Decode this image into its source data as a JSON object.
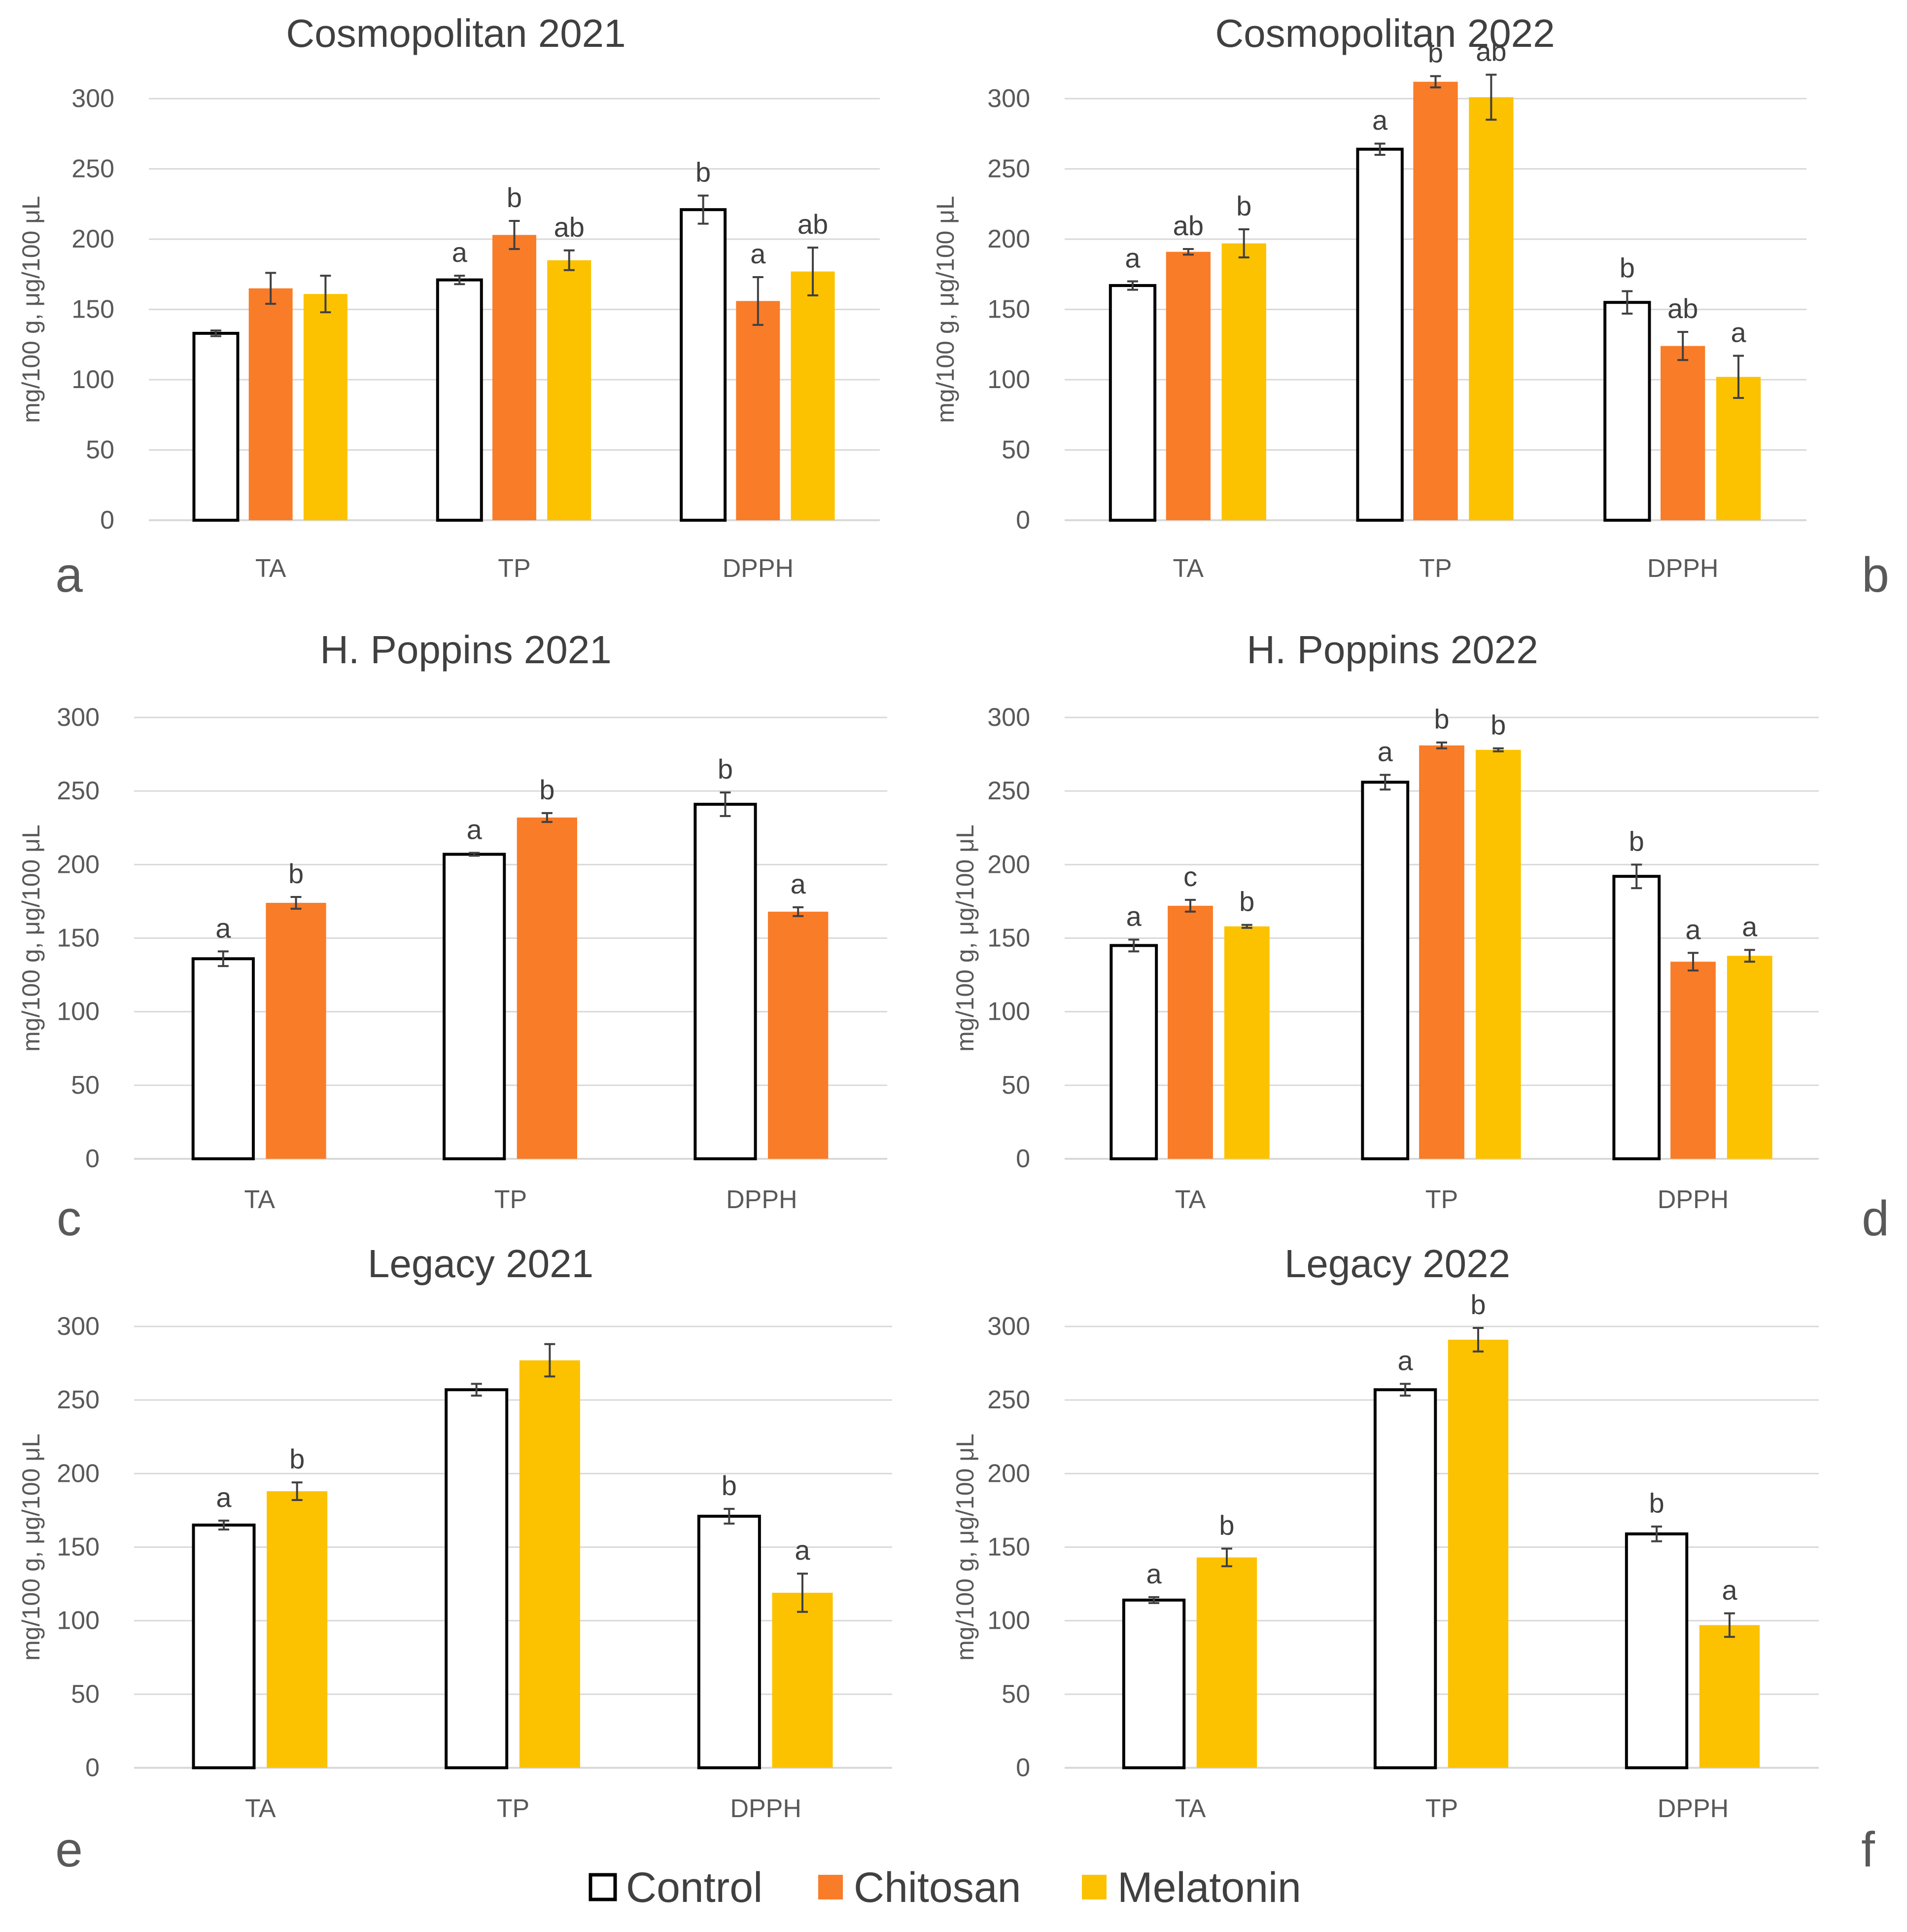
{
  "colors": {
    "control_fill": "#ffffff",
    "control_edge": "#000000",
    "chitosan": "#f97c28",
    "melatonin": "#fcc200",
    "grid": "#d9d9d9",
    "text": "#595959",
    "error_bar": "#404040"
  },
  "legend": [
    {
      "key": "control",
      "label": "Control"
    },
    {
      "key": "chitosan",
      "label": "Chitosan"
    },
    {
      "key": "melatonin",
      "label": "Melatonin"
    }
  ],
  "chart_data": [
    {
      "type": "bar",
      "panel": "a",
      "title": "Cosmopolitan 2021",
      "ylabel": "mg/100 g, μg/100 μL",
      "ylim": [
        0,
        300
      ],
      "yticks": [
        "0",
        "50",
        "100",
        "150",
        "200",
        "250",
        "300"
      ],
      "categories": [
        "TA",
        "TP",
        "DPPH"
      ],
      "series": [
        {
          "key": "control",
          "name": "Control",
          "values": [
            133,
            171,
            221
          ],
          "errors": [
            2,
            3,
            10
          ],
          "letters": [
            "",
            "a",
            "b"
          ]
        },
        {
          "key": "chitosan",
          "name": "Chitosan",
          "values": [
            165,
            203,
            156
          ],
          "errors": [
            11,
            10,
            17
          ],
          "letters": [
            "",
            "b",
            "a"
          ]
        },
        {
          "key": "melatonin",
          "name": "Melatonin",
          "values": [
            161,
            185,
            177
          ],
          "errors": [
            13,
            7,
            17
          ],
          "letters": [
            "",
            "ab",
            "ab"
          ]
        }
      ]
    },
    {
      "type": "bar",
      "panel": "b",
      "title": "Cosmopolitan 2022",
      "ylabel": "mg/100 g, μg/100 μL",
      "ylim": [
        0,
        300
      ],
      "yticks": [
        "0",
        "50",
        "100",
        "150",
        "200",
        "250",
        "300"
      ],
      "categories": [
        "TA",
        "TP",
        "DPPH"
      ],
      "series": [
        {
          "key": "control",
          "name": "Control",
          "values": [
            167,
            264,
            155
          ],
          "errors": [
            3,
            4,
            8
          ],
          "letters": [
            "a",
            "a",
            "b"
          ]
        },
        {
          "key": "chitosan",
          "name": "Chitosan",
          "values": [
            191,
            312,
            124
          ],
          "errors": [
            2,
            4,
            10
          ],
          "letters": [
            "ab",
            "b",
            "ab"
          ]
        },
        {
          "key": "melatonin",
          "name": "Melatonin",
          "values": [
            197,
            301,
            102
          ],
          "errors": [
            10,
            16,
            15
          ],
          "letters": [
            "b",
            "ab",
            "a"
          ]
        }
      ]
    },
    {
      "type": "bar",
      "panel": "c",
      "title": "H. Poppins 2021",
      "ylabel": "mg/100 g, μg/100 μL",
      "ylim": [
        0,
        300
      ],
      "yticks": [
        "0",
        "50",
        "100",
        "150",
        "200",
        "250",
        "300"
      ],
      "categories": [
        "TA",
        "TP",
        "DPPH"
      ],
      "series": [
        {
          "key": "control",
          "name": "Control",
          "values": [
            136,
            207,
            241
          ],
          "errors": [
            5,
            1,
            8
          ],
          "letters": [
            "a",
            "a",
            "b"
          ]
        },
        {
          "key": "chitosan",
          "name": "Chitosan",
          "values": [
            174,
            232,
            168
          ],
          "errors": [
            4,
            3,
            3
          ],
          "letters": [
            "b",
            "b",
            "a"
          ]
        }
      ]
    },
    {
      "type": "bar",
      "panel": "d",
      "title": "H. Poppins 2022",
      "ylabel": "mg/100 g, μg/100 μL",
      "ylim": [
        0,
        300
      ],
      "yticks": [
        "0",
        "50",
        "100",
        "150",
        "200",
        "250",
        "300"
      ],
      "categories": [
        "TA",
        "TP",
        "DPPH"
      ],
      "series": [
        {
          "key": "control",
          "name": "Control",
          "values": [
            145,
            256,
            192
          ],
          "errors": [
            4,
            5,
            8
          ],
          "letters": [
            "a",
            "a",
            "b"
          ]
        },
        {
          "key": "chitosan",
          "name": "Chitosan",
          "values": [
            172,
            281,
            134
          ],
          "errors": [
            4,
            2,
            6
          ],
          "letters": [
            "c",
            "b",
            "a"
          ]
        },
        {
          "key": "melatonin",
          "name": "Melatonin",
          "values": [
            158,
            278,
            138
          ],
          "errors": [
            1,
            1,
            4
          ],
          "letters": [
            "b",
            "b",
            "a"
          ]
        }
      ]
    },
    {
      "type": "bar",
      "panel": "e",
      "title": "Legacy 2021",
      "ylabel": "mg/100 g, μg/100 μL",
      "ylim": [
        0,
        300
      ],
      "yticks": [
        "0",
        "50",
        "100",
        "150",
        "200",
        "250",
        "300"
      ],
      "categories": [
        "TA",
        "TP",
        "DPPH"
      ],
      "series": [
        {
          "key": "control",
          "name": "Control",
          "values": [
            165,
            257,
            171
          ],
          "errors": [
            3,
            4,
            5
          ],
          "letters": [
            "a",
            "",
            "b"
          ]
        },
        {
          "key": "melatonin",
          "name": "Melatonin",
          "values": [
            188,
            277,
            119
          ],
          "errors": [
            6,
            11,
            13
          ],
          "letters": [
            "b",
            "",
            "a"
          ]
        }
      ]
    },
    {
      "type": "bar",
      "panel": "f",
      "title": "Legacy 2022",
      "ylabel": "mg/100 g, μg/100 μL",
      "ylim": [
        0,
        300
      ],
      "yticks": [
        "0",
        "50",
        "100",
        "150",
        "200",
        "250",
        "300"
      ],
      "categories": [
        "TA",
        "TP",
        "DPPH"
      ],
      "series": [
        {
          "key": "control",
          "name": "Control",
          "values": [
            114,
            257,
            159
          ],
          "errors": [
            2,
            4,
            5
          ],
          "letters": [
            "a",
            "a",
            "b"
          ]
        },
        {
          "key": "melatonin",
          "name": "Melatonin",
          "values": [
            143,
            291,
            97
          ],
          "errors": [
            6,
            8,
            8
          ],
          "letters": [
            "b",
            "b",
            "a"
          ]
        }
      ]
    }
  ]
}
